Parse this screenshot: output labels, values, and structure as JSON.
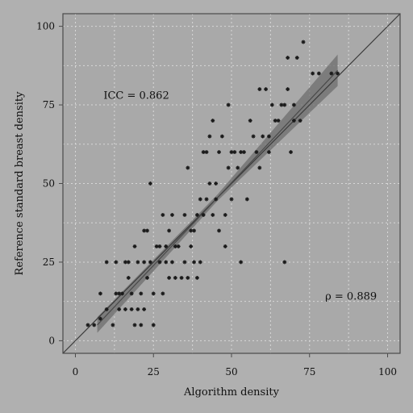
{
  "chart_data": {
    "type": "scatter",
    "title": "",
    "xlabel": "Algorithm density",
    "ylabel": "Reference standard breast density",
    "xlim": [
      -4,
      104
    ],
    "ylim": [
      -4,
      104
    ],
    "xticks": [
      0,
      25,
      50,
      75,
      100
    ],
    "yticks": [
      0,
      25,
      50,
      75,
      100
    ],
    "xtick_labels": [
      "0",
      "25",
      "50",
      "75",
      "100"
    ],
    "ytick_labels": [
      "0",
      "25",
      "50",
      "75",
      "100"
    ],
    "grid": true,
    "annotations": [
      {
        "text": "ICC = 0.862",
        "x": 9,
        "y": 77
      },
      {
        "text": "ρ = 0.889",
        "x": 80,
        "y": 13
      }
    ],
    "identity_line": {
      "x": [
        -4,
        104
      ],
      "y": [
        -4,
        104
      ]
    },
    "fit_line": {
      "x": [
        7,
        84
      ],
      "y": [
        5,
        86
      ]
    },
    "points": [
      {
        "x": 4,
        "y": 5
      },
      {
        "x": 6,
        "y": 5
      },
      {
        "x": 8,
        "y": 7
      },
      {
        "x": 8,
        "y": 15
      },
      {
        "x": 10,
        "y": 10
      },
      {
        "x": 10,
        "y": 25
      },
      {
        "x": 12,
        "y": 5
      },
      {
        "x": 13,
        "y": 25
      },
      {
        "x": 13,
        "y": 15
      },
      {
        "x": 14,
        "y": 15
      },
      {
        "x": 14,
        "y": 10
      },
      {
        "x": 15,
        "y": 15
      },
      {
        "x": 16,
        "y": 10
      },
      {
        "x": 16,
        "y": 25
      },
      {
        "x": 17,
        "y": 25
      },
      {
        "x": 17,
        "y": 20
      },
      {
        "x": 18,
        "y": 15
      },
      {
        "x": 18,
        "y": 10
      },
      {
        "x": 19,
        "y": 5
      },
      {
        "x": 19,
        "y": 30
      },
      {
        "x": 20,
        "y": 10
      },
      {
        "x": 20,
        "y": 25
      },
      {
        "x": 21,
        "y": 15
      },
      {
        "x": 21,
        "y": 5
      },
      {
        "x": 22,
        "y": 10
      },
      {
        "x": 22,
        "y": 35
      },
      {
        "x": 22,
        "y": 25
      },
      {
        "x": 23,
        "y": 35
      },
      {
        "x": 23,
        "y": 20
      },
      {
        "x": 24,
        "y": 50
      },
      {
        "x": 24,
        "y": 25
      },
      {
        "x": 25,
        "y": 5
      },
      {
        "x": 25,
        "y": 15
      },
      {
        "x": 26,
        "y": 30
      },
      {
        "x": 27,
        "y": 25
      },
      {
        "x": 27,
        "y": 30
      },
      {
        "x": 28,
        "y": 40
      },
      {
        "x": 28,
        "y": 15
      },
      {
        "x": 29,
        "y": 30
      },
      {
        "x": 29,
        "y": 25
      },
      {
        "x": 30,
        "y": 20
      },
      {
        "x": 30,
        "y": 35
      },
      {
        "x": 31,
        "y": 40
      },
      {
        "x": 31,
        "y": 25
      },
      {
        "x": 32,
        "y": 20
      },
      {
        "x": 32,
        "y": 30
      },
      {
        "x": 33,
        "y": 30
      },
      {
        "x": 34,
        "y": 20
      },
      {
        "x": 35,
        "y": 25
      },
      {
        "x": 35,
        "y": 40
      },
      {
        "x": 36,
        "y": 55
      },
      {
        "x": 36,
        "y": 20
      },
      {
        "x": 37,
        "y": 35
      },
      {
        "x": 37,
        "y": 30
      },
      {
        "x": 38,
        "y": 25
      },
      {
        "x": 38,
        "y": 35
      },
      {
        "x": 39,
        "y": 40
      },
      {
        "x": 39,
        "y": 20
      },
      {
        "x": 40,
        "y": 45
      },
      {
        "x": 40,
        "y": 25
      },
      {
        "x": 41,
        "y": 40
      },
      {
        "x": 41,
        "y": 60
      },
      {
        "x": 42,
        "y": 60
      },
      {
        "x": 42,
        "y": 45
      },
      {
        "x": 43,
        "y": 50
      },
      {
        "x": 43,
        "y": 65
      },
      {
        "x": 44,
        "y": 70
      },
      {
        "x": 44,
        "y": 40
      },
      {
        "x": 45,
        "y": 50
      },
      {
        "x": 45,
        "y": 45
      },
      {
        "x": 46,
        "y": 60
      },
      {
        "x": 46,
        "y": 35
      },
      {
        "x": 47,
        "y": 65
      },
      {
        "x": 48,
        "y": 40
      },
      {
        "x": 48,
        "y": 30
      },
      {
        "x": 49,
        "y": 55
      },
      {
        "x": 49,
        "y": 75
      },
      {
        "x": 50,
        "y": 60
      },
      {
        "x": 50,
        "y": 45
      },
      {
        "x": 51,
        "y": 60
      },
      {
        "x": 52,
        "y": 55
      },
      {
        "x": 53,
        "y": 60
      },
      {
        "x": 53,
        "y": 25
      },
      {
        "x": 54,
        "y": 60
      },
      {
        "x": 55,
        "y": 45
      },
      {
        "x": 56,
        "y": 70
      },
      {
        "x": 57,
        "y": 65
      },
      {
        "x": 58,
        "y": 60
      },
      {
        "x": 59,
        "y": 80
      },
      {
        "x": 59,
        "y": 55
      },
      {
        "x": 60,
        "y": 65
      },
      {
        "x": 61,
        "y": 80
      },
      {
        "x": 62,
        "y": 60
      },
      {
        "x": 62,
        "y": 65
      },
      {
        "x": 63,
        "y": 75
      },
      {
        "x": 64,
        "y": 70
      },
      {
        "x": 65,
        "y": 70
      },
      {
        "x": 66,
        "y": 75
      },
      {
        "x": 67,
        "y": 75
      },
      {
        "x": 67,
        "y": 25
      },
      {
        "x": 68,
        "y": 80
      },
      {
        "x": 68,
        "y": 90
      },
      {
        "x": 69,
        "y": 60
      },
      {
        "x": 70,
        "y": 75
      },
      {
        "x": 70,
        "y": 70
      },
      {
        "x": 71,
        "y": 90
      },
      {
        "x": 72,
        "y": 70
      },
      {
        "x": 73,
        "y": 95
      },
      {
        "x": 76,
        "y": 85
      },
      {
        "x": 78,
        "y": 85
      },
      {
        "x": 82,
        "y": 85
      },
      {
        "x": 84,
        "y": 85
      }
    ],
    "colors": {
      "background": "#b0b0b0",
      "plot_background": "#a9a9a9",
      "grid": "#d8d8d8",
      "frame": "#4a4a4a",
      "points": "#1a1a1a",
      "identity_line": "#3a3a3a",
      "fit_line": "#4a4a4a",
      "confidence_band": "#6e6e6e"
    }
  }
}
